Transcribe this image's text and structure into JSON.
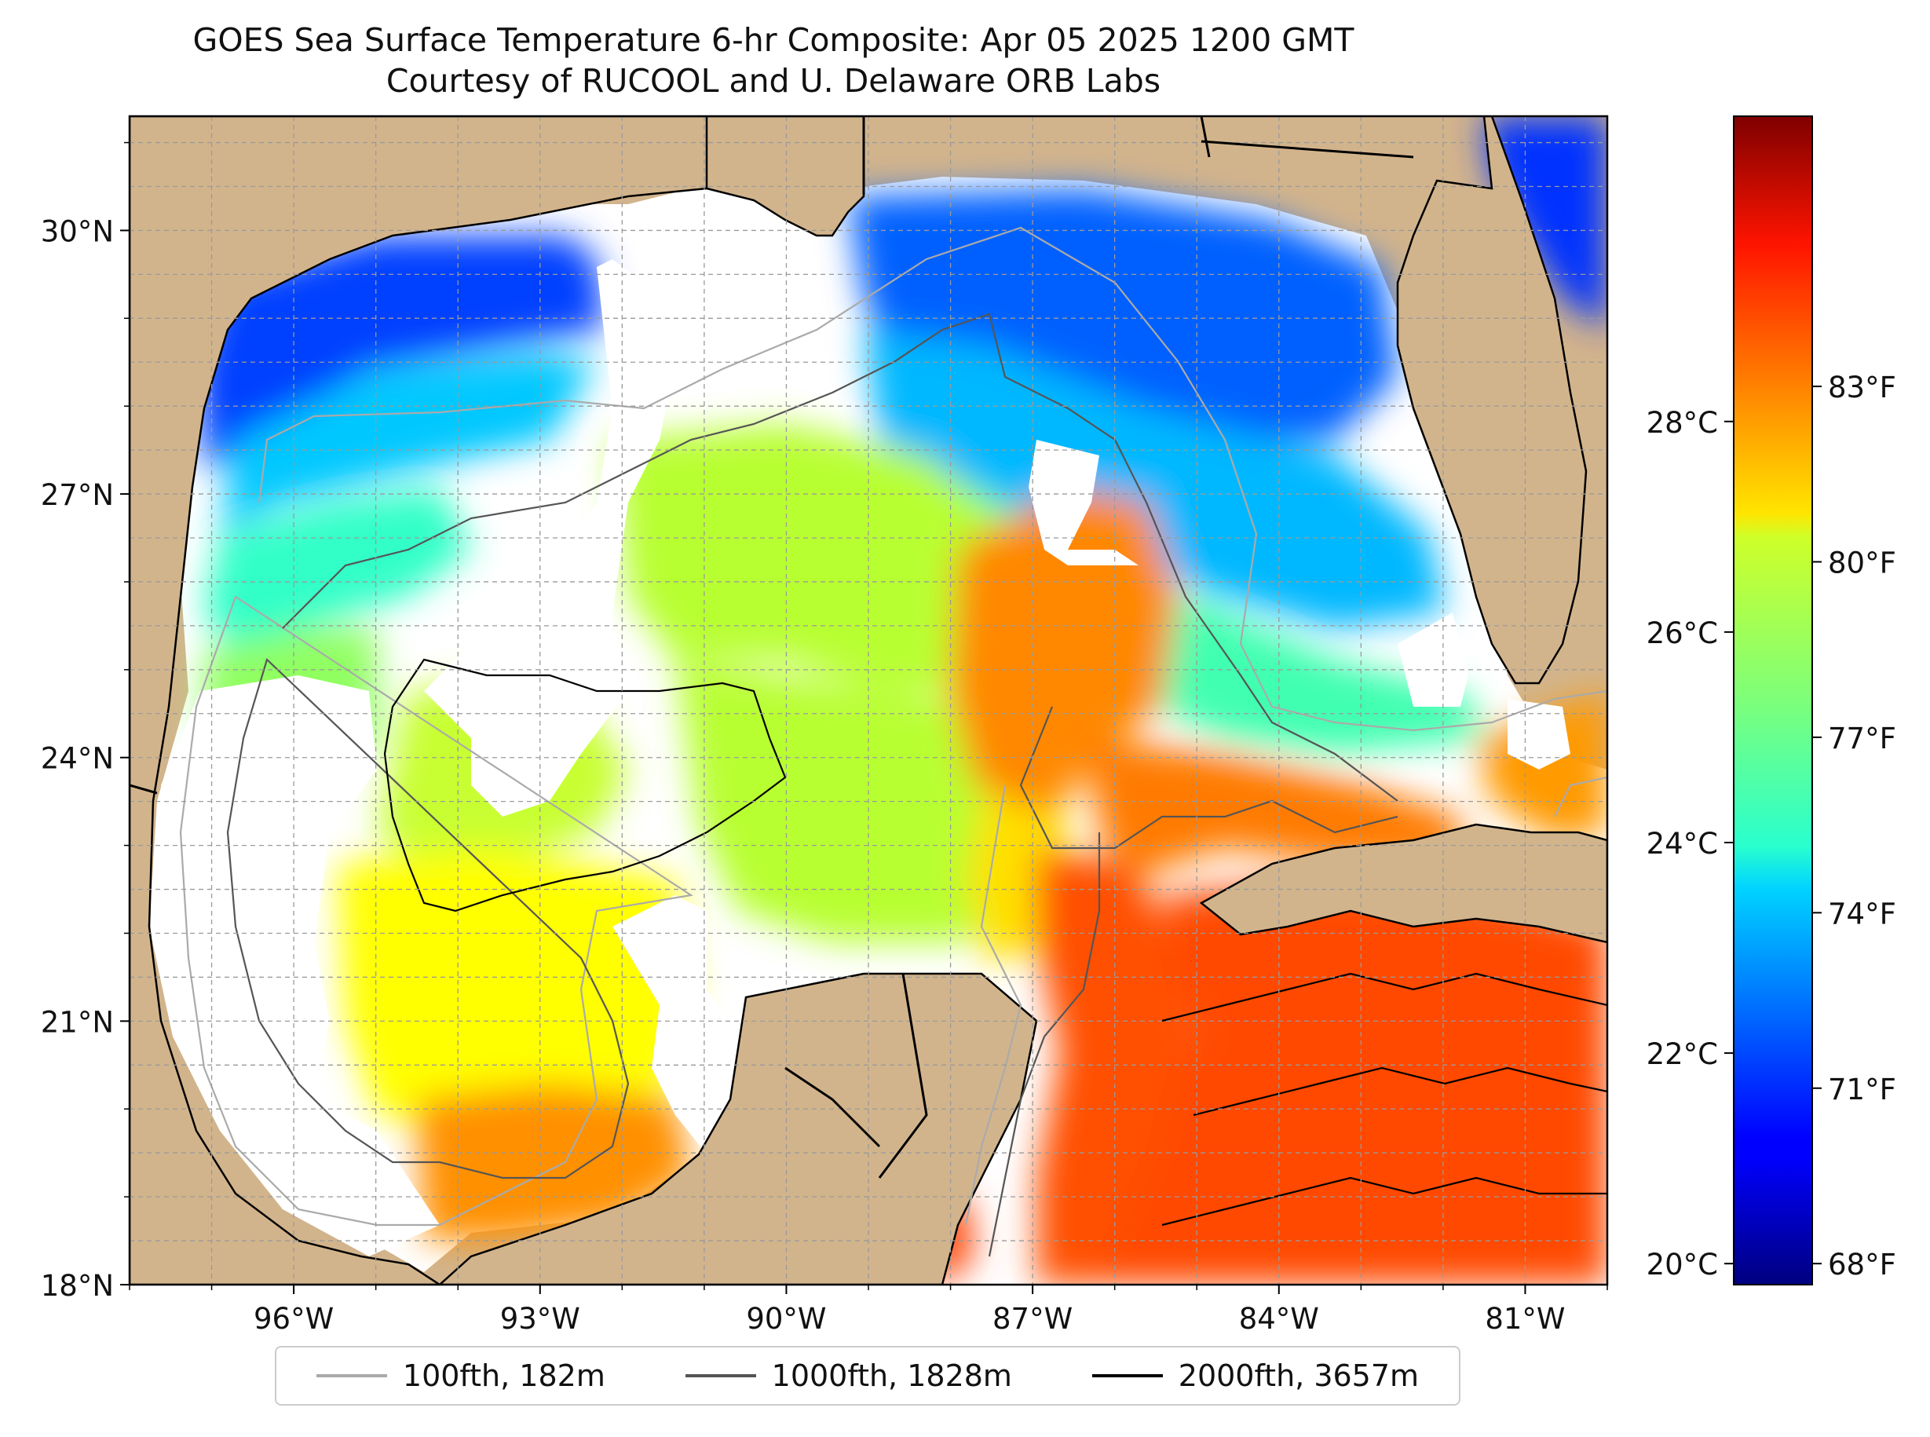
{
  "title_line1": "GOES Sea Surface Temperature 6-hr Composite: Apr 05 2025 1200 GMT",
  "title_line2": "Courtesy of RUCOOL and U. Delaware ORB Labs",
  "map": {
    "lat_range": [
      18,
      31.3
    ],
    "lon_range": [
      -98,
      -80
    ],
    "lat_ticks": [
      {
        "value": 30,
        "label": "30°N"
      },
      {
        "value": 27,
        "label": "27°N"
      },
      {
        "value": 24,
        "label": "24°N"
      },
      {
        "value": 21,
        "label": "21°N"
      },
      {
        "value": 18,
        "label": "18°N"
      }
    ],
    "lon_ticks": [
      {
        "value": -96,
        "label": "96°W"
      },
      {
        "value": -93,
        "label": "93°W"
      },
      {
        "value": -90,
        "label": "90°W"
      },
      {
        "value": -87,
        "label": "87°W"
      },
      {
        "value": -84,
        "label": "84°W"
      },
      {
        "value": -81,
        "label": "81°W"
      }
    ],
    "gridlines": true,
    "land_color": "#d2b48c",
    "no_data_color": "#ffffff"
  },
  "colorbar": {
    "colormap": "jet",
    "range_c": [
      19.8,
      30.9
    ],
    "celsius_ticks": [
      {
        "value": 28,
        "label": "28°C"
      },
      {
        "value": 26,
        "label": "26°C"
      },
      {
        "value": 24,
        "label": "24°C"
      },
      {
        "value": 22,
        "label": "22°C"
      },
      {
        "value": 20,
        "label": "20°C"
      }
    ],
    "fahrenheit_ticks": [
      {
        "value": 83,
        "label": "83°F"
      },
      {
        "value": 80,
        "label": "80°F"
      },
      {
        "value": 77,
        "label": "77°F"
      },
      {
        "value": 74,
        "label": "74°F"
      },
      {
        "value": 71,
        "label": "71°F"
      },
      {
        "value": 68,
        "label": "68°F"
      }
    ]
  },
  "legend": {
    "placement": "bottom-center",
    "items": [
      {
        "label": "100fth, 182m",
        "color": "#aaaaaa"
      },
      {
        "label": "1000fth, 1828m",
        "color": "#555555"
      },
      {
        "label": "2000fth, 3657m",
        "color": "#000000"
      }
    ]
  }
}
